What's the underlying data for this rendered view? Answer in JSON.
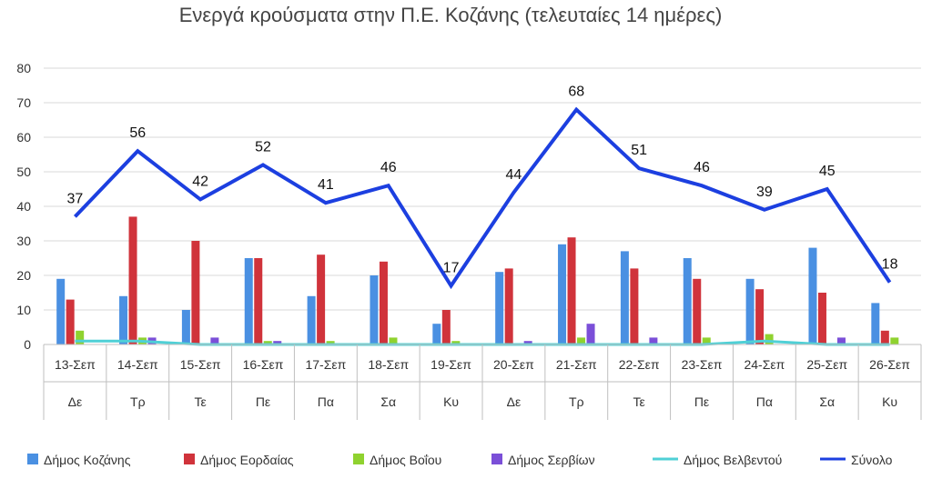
{
  "chart_data": {
    "type": "bar",
    "title": "Ενεργά κρούσματα στην Π.Ε. Κοζάνης (τελευταίες 14 ημέρες)",
    "categories": [
      "13-Σεπ",
      "14-Σεπ",
      "15-Σεπ",
      "16-Σεπ",
      "17-Σεπ",
      "18-Σεπ",
      "19-Σεπ",
      "20-Σεπ",
      "21-Σεπ",
      "22-Σεπ",
      "23-Σεπ",
      "24-Σεπ",
      "25-Σεπ",
      "26-Σεπ"
    ],
    "day_labels": [
      "Δε",
      "Τρ",
      "Τε",
      "Πε",
      "Πα",
      "Σα",
      "Κυ",
      "Δε",
      "Τρ",
      "Τε",
      "Πε",
      "Πα",
      "Σα",
      "Κυ"
    ],
    "ylim": [
      0,
      80
    ],
    "yticks": [
      0,
      10,
      20,
      30,
      40,
      50,
      60,
      70,
      80
    ],
    "grid": true,
    "legend_position": "bottom",
    "series": [
      {
        "name": "Δήμος Κοζάνης",
        "type": "bar",
        "color": "#4a90e2",
        "values": [
          19,
          14,
          10,
          25,
          14,
          20,
          6,
          21,
          29,
          27,
          25,
          19,
          28,
          12
        ]
      },
      {
        "name": "Δήμος Εορδαίας",
        "type": "bar",
        "color": "#d0333b",
        "values": [
          13,
          37,
          30,
          25,
          26,
          24,
          10,
          22,
          31,
          22,
          19,
          16,
          15,
          4
        ]
      },
      {
        "name": "Δήμος Βοΐου",
        "type": "bar",
        "color": "#8fd22f",
        "values": [
          4,
          2,
          0,
          1,
          1,
          2,
          1,
          0,
          2,
          0,
          2,
          3,
          0,
          2
        ]
      },
      {
        "name": "Δήμος Σερβίων",
        "type": "bar",
        "color": "#7b4fd8",
        "values": [
          0,
          2,
          2,
          1,
          0,
          0,
          0,
          1,
          6,
          2,
          0,
          0,
          2,
          0
        ]
      },
      {
        "name": "Δήμος Βελβεντού",
        "type": "line",
        "color": "#4fd0d6",
        "values": [
          1,
          1,
          0,
          0,
          0,
          0,
          0,
          0,
          0,
          0,
          0,
          1,
          0,
          0
        ]
      },
      {
        "name": "Σύνολο",
        "type": "line",
        "color": "#1c3fe0",
        "values": [
          37,
          56,
          42,
          52,
          41,
          46,
          17,
          44,
          68,
          51,
          46,
          39,
          45,
          18
        ],
        "show_labels": true
      }
    ]
  }
}
